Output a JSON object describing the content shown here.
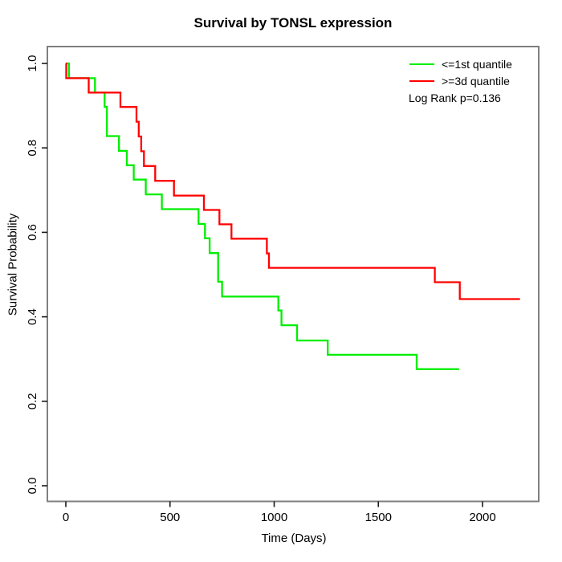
{
  "chart": {
    "title": "Survival by TONSL expression",
    "xlabel": "Time (Days)",
    "ylabel": "Survival Probability",
    "annotation": "Log Rank p=0.136"
  },
  "chart_data": {
    "type": "line",
    "subtype": "kaplan-meier-step",
    "title": "Survival by TONSL expression",
    "xlabel": "Time (Days)",
    "ylabel": "Survival Probability",
    "annotation": "Log Rank p=0.136",
    "legend_position": "top-right",
    "grid": false,
    "box_color": "#7f7f7f",
    "tick_color": "#1a1a1a",
    "xlim": [
      0,
      2270
    ],
    "ylim": [
      0,
      1.0
    ],
    "xticks": {
      "values": [
        0,
        500,
        1000,
        1500,
        2000
      ],
      "labels": [
        "0",
        "500",
        "1000",
        "1500",
        "2000"
      ]
    },
    "yticks": {
      "values": [
        0.0,
        0.2,
        0.4,
        0.6,
        0.8,
        1.0
      ],
      "labels": [
        "0.0",
        "0.2",
        "0.4",
        "0.6",
        "0.8",
        "1.0"
      ]
    },
    "series": [
      {
        "name": "<=1st quantile",
        "color": "#00ee00",
        "end_day": 1887,
        "steps": [
          [
            0,
            1.0
          ],
          [
            15,
            0.965
          ],
          [
            140,
            0.931
          ],
          [
            186,
            0.897
          ],
          [
            197,
            0.828
          ],
          [
            255,
            0.793
          ],
          [
            293,
            0.759
          ],
          [
            326,
            0.725
          ],
          [
            384,
            0.69
          ],
          [
            461,
            0.655
          ],
          [
            637,
            0.62
          ],
          [
            668,
            0.586
          ],
          [
            690,
            0.551
          ],
          [
            731,
            0.483
          ],
          [
            750,
            0.448
          ],
          [
            1020,
            0.415
          ],
          [
            1035,
            0.38
          ],
          [
            1110,
            0.344
          ],
          [
            1257,
            0.31
          ],
          [
            1684,
            0.276
          ]
        ]
      },
      {
        "name": ">=3d quantile",
        "color": "#ff0000",
        "end_day": 2180,
        "steps": [
          [
            0,
            1.0
          ],
          [
            2,
            0.965
          ],
          [
            110,
            0.931
          ],
          [
            262,
            0.897
          ],
          [
            339,
            0.862
          ],
          [
            350,
            0.827
          ],
          [
            362,
            0.792
          ],
          [
            375,
            0.757
          ],
          [
            429,
            0.722
          ],
          [
            519,
            0.687
          ],
          [
            663,
            0.653
          ],
          [
            737,
            0.619
          ],
          [
            795,
            0.585
          ],
          [
            965,
            0.55
          ],
          [
            975,
            0.516
          ],
          [
            1771,
            0.482
          ],
          [
            1891,
            0.442
          ]
        ]
      }
    ]
  }
}
